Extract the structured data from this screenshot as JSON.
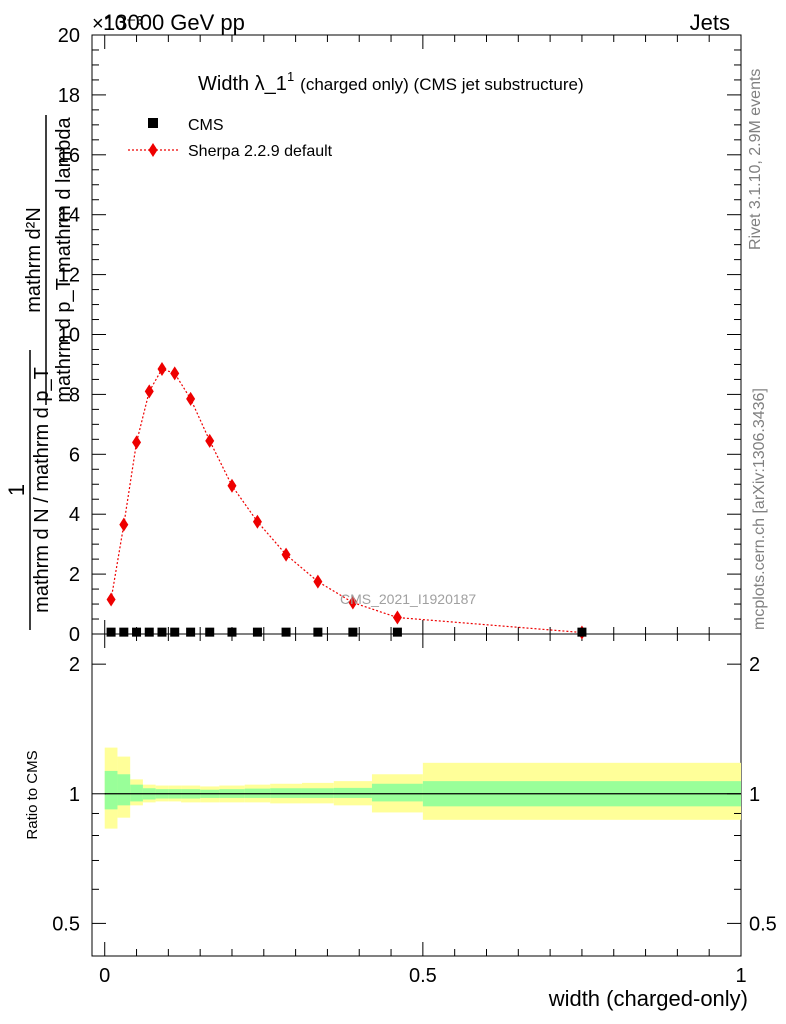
{
  "header": {
    "left_label": "13000 GeV pp",
    "right_label": "Jets",
    "multiplier": "×10⁻³"
  },
  "side_labels": {
    "rivet": "Rivet 3.1.10,  2.9M events",
    "mcplots": "mcplots.cern.ch [arXiv:1306.3436]"
  },
  "watermark": "CMS_2021_I1920187",
  "chart_data": [
    {
      "type": "scatter",
      "panel": "main",
      "title": "Width λ_1¹ (charged only) (CMS jet substructure)",
      "title_main": "Width λ_1",
      "title_sup": "1",
      "title_tail": "(charged only) (CMS jet substructure)",
      "ylabel_top": "mathrm d²N",
      "ylabel_one": "1",
      "ylabel_mid": "mathrm d p_T mathrm d lambda",
      "ylabel_bottom": "mathrm d N / mathrm d p_T",
      "ylim": [
        0,
        20
      ],
      "xlim": [
        -0.02,
        1.0
      ],
      "yticks": [
        "0",
        "2",
        "4",
        "6",
        "8",
        "10",
        "12",
        "14",
        "16",
        "18",
        "20"
      ],
      "grid": false,
      "legend_position": "top-left",
      "series": [
        {
          "name": "CMS",
          "color": "#000000",
          "marker": "square",
          "x": [
            0.01,
            0.03,
            0.05,
            0.07,
            0.09,
            0.11,
            0.135,
            0.165,
            0.2,
            0.24,
            0.285,
            0.335,
            0.39,
            0.46,
            0.75
          ],
          "y": [
            0.012,
            0.012,
            0.012,
            0.012,
            0.012,
            0.012,
            0.012,
            0.012,
            0.012,
            0.012,
            0.012,
            0.012,
            0.012,
            0.012,
            0.012
          ]
        },
        {
          "name": "Sherpa 2.2.9 default",
          "color": "#ee0000",
          "marker": "diamond",
          "line": "dotted",
          "x": [
            0.01,
            0.03,
            0.05,
            0.07,
            0.09,
            0.11,
            0.135,
            0.165,
            0.2,
            0.24,
            0.285,
            0.335,
            0.39,
            0.46,
            0.75
          ],
          "y": [
            1.15,
            3.65,
            6.4,
            8.1,
            8.85,
            8.7,
            7.85,
            6.45,
            4.95,
            3.75,
            2.65,
            1.75,
            1.05,
            0.55,
            0.05
          ]
        }
      ]
    },
    {
      "type": "area",
      "panel": "ratio",
      "ylabel": "Ratio to CMS",
      "xlabel": "width (charged-only)",
      "ylog": true,
      "ylim": [
        0.42,
        2.35
      ],
      "xlim": [
        -0.02,
        1.0
      ],
      "yticks": [
        {
          "value": 0.5,
          "label": "0.5"
        },
        {
          "value": 1,
          "label": "1"
        },
        {
          "value": 2,
          "label": "2"
        }
      ],
      "xticks": [
        {
          "value": 0,
          "label": "0"
        },
        {
          "value": 0.5,
          "label": "0.5"
        },
        {
          "value": 1,
          "label": "1"
        }
      ],
      "bin_edges": [
        0.0,
        0.02,
        0.04,
        0.06,
        0.08,
        0.1,
        0.12,
        0.15,
        0.18,
        0.22,
        0.26,
        0.31,
        0.36,
        0.42,
        0.5,
        1.0
      ],
      "inner_band": {
        "color": "#99ff99",
        "lo": [
          0.92,
          0.94,
          0.96,
          0.97,
          0.975,
          0.975,
          0.975,
          0.978,
          0.978,
          0.978,
          0.978,
          0.978,
          0.978,
          0.96,
          0.935
        ],
        "hi": [
          1.13,
          1.11,
          1.05,
          1.03,
          1.025,
          1.025,
          1.025,
          1.022,
          1.025,
          1.028,
          1.03,
          1.03,
          1.032,
          1.055,
          1.07
        ]
      },
      "outer_band": {
        "color": "#ffff99",
        "lo": [
          0.83,
          0.88,
          0.94,
          0.955,
          0.96,
          0.96,
          0.955,
          0.955,
          0.955,
          0.955,
          0.95,
          0.95,
          0.94,
          0.905,
          0.87
        ],
        "hi": [
          1.28,
          1.22,
          1.08,
          1.05,
          1.045,
          1.045,
          1.045,
          1.04,
          1.045,
          1.05,
          1.055,
          1.06,
          1.07,
          1.11,
          1.18
        ]
      },
      "reference_line": 1
    }
  ]
}
